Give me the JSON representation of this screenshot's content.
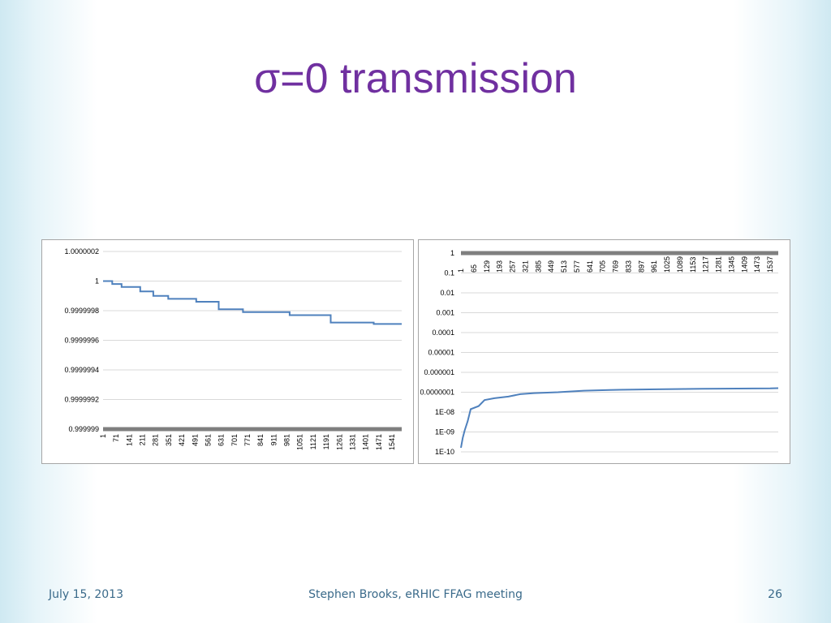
{
  "slide": {
    "title": "σ=0 transmission",
    "footer_left": "July 15, 2013",
    "footer_center": "Stephen Brooks, eRHIC FFAG meeting",
    "footer_right": "26"
  },
  "colors": {
    "line": "#4f81bd",
    "axis": "#7f7f7f",
    "grid": "#d9d9d9",
    "title": "#7030a0"
  },
  "chart_data": [
    {
      "type": "line",
      "title": "",
      "xlabel": "",
      "ylabel": "",
      "x_range": [
        1,
        1600
      ],
      "ylim": [
        0.999999,
        1.0000002
      ],
      "y_ticks": [
        1.0000002,
        1,
        0.9999998,
        0.9999996,
        0.9999994,
        0.9999992,
        0.999999
      ],
      "y_tick_labels": [
        "1.0000002",
        "1",
        "0.9999998",
        "0.9999996",
        "0.9999994",
        "0.9999992",
        "0.999999"
      ],
      "x_tick_labels": [
        "1",
        "71",
        "141",
        "211",
        "281",
        "351",
        "421",
        "491",
        "561",
        "631",
        "701",
        "771",
        "841",
        "911",
        "981",
        "1051",
        "1121",
        "1191",
        "1261",
        "1331",
        "1401",
        "1471",
        "1541"
      ],
      "grid": true,
      "legend": "none",
      "series": [
        {
          "x": [
            1,
            50,
            50,
            100,
            100,
            200,
            200,
            270,
            270,
            350,
            350,
            500,
            500,
            620,
            620,
            750,
            750,
            1000,
            1000,
            1220,
            1220,
            1450,
            1450,
            1600
          ],
          "values": [
            1.0,
            1.0,
            0.99999998,
            0.99999998,
            0.99999996,
            0.99999996,
            0.99999993,
            0.99999993,
            0.9999999,
            0.9999999,
            0.99999988,
            0.99999988,
            0.99999986,
            0.99999986,
            0.99999981,
            0.99999981,
            0.99999979,
            0.99999979,
            0.99999977,
            0.99999977,
            0.99999972,
            0.99999972,
            0.99999971,
            0.99999971
          ]
        }
      ]
    },
    {
      "type": "line",
      "title": "",
      "xlabel": "",
      "ylabel": "",
      "y_scale": "log",
      "x_range": [
        1,
        1600
      ],
      "ylim": [
        1e-10,
        1
      ],
      "y_tick_labels": [
        "1",
        "0.1",
        "0.01",
        "0.001",
        "0.0001",
        "0.00001",
        "0.000001",
        "0.0000001",
        "1E-08",
        "1E-09",
        "1E-10"
      ],
      "x_tick_labels": [
        "1",
        "65",
        "129",
        "193",
        "257",
        "321",
        "385",
        "449",
        "513",
        "577",
        "641",
        "705",
        "769",
        "833",
        "897",
        "961",
        "1025",
        "1089",
        "1153",
        "1217",
        "1281",
        "1345",
        "1409",
        "1473",
        "1537"
      ],
      "grid": true,
      "legend": "none",
      "series": [
        {
          "x": [
            1,
            10,
            10,
            20,
            20,
            35,
            35,
            50,
            50,
            90,
            90,
            120,
            120,
            170,
            170,
            240,
            240,
            300,
            300,
            370,
            370,
            490,
            490,
            620,
            620,
            750,
            750,
            990,
            990,
            1220,
            1220,
            1560,
            1560,
            1600
          ],
          "values": [
            1.6e-10,
            5e-10,
            5e-10,
            1.2e-09,
            1.2e-09,
            3.5e-09,
            3.5e-09,
            1.4e-08,
            1.4e-08,
            2e-08,
            2e-08,
            4e-08,
            4e-08,
            5e-08,
            5e-08,
            6e-08,
            6e-08,
            8e-08,
            8e-08,
            9e-08,
            9e-08,
            1e-07,
            1e-07,
            1.2e-07,
            1.2e-07,
            1.3e-07,
            1.3e-07,
            1.4e-07,
            1.4e-07,
            1.5e-07,
            1.5e-07,
            1.55e-07,
            1.55e-07,
            1.6e-07
          ]
        }
      ]
    }
  ]
}
